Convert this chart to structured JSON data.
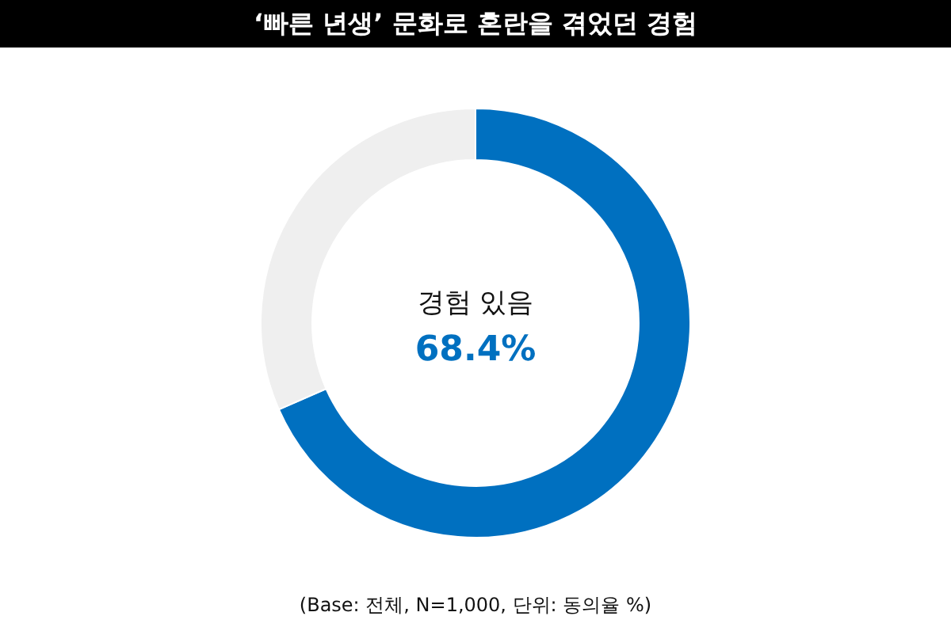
{
  "chart_data": {
    "type": "donut",
    "title": "‘빠른 년생’ 문화로 혼란을 겪었던 경험",
    "categories": [
      "경험 있음",
      null
    ],
    "values": [
      68.4,
      31.6
    ],
    "colors": [
      "#0070c0",
      "#efefef"
    ],
    "value_labels": [
      "68.4%",
      null
    ],
    "legend": false,
    "annotations": [
      "(Base: 전체, N=1,000, 단위: 동의율 %)"
    ]
  }
}
